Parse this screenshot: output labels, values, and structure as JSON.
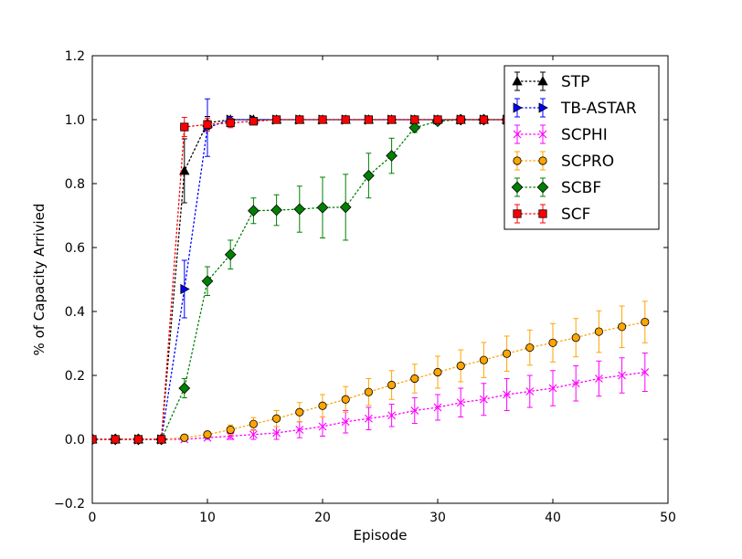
{
  "chart_data": {
    "type": "line",
    "title": "",
    "xlabel": "Episode",
    "ylabel": "% of Capacity Arrivied",
    "xlim": [
      0,
      50
    ],
    "ylim": [
      -0.2,
      1.2
    ],
    "xticks": [
      0,
      10,
      20,
      30,
      40,
      50
    ],
    "yticks": [
      -0.2,
      0.0,
      0.2,
      0.4,
      0.6,
      0.8,
      1.0,
      1.2
    ],
    "xtick_labels": [
      "0",
      "10",
      "20",
      "30",
      "40",
      "50"
    ],
    "ytick_labels": [
      "−0.2",
      "0.0",
      "0.2",
      "0.4",
      "0.6",
      "0.8",
      "1.0",
      "1.2"
    ],
    "grid": false,
    "legend_position": "top-right",
    "x": [
      0,
      2,
      4,
      6,
      8,
      10,
      12,
      14,
      16,
      18,
      20,
      22,
      24,
      26,
      28,
      30,
      32,
      34,
      36,
      38,
      40,
      42,
      44,
      46,
      48
    ],
    "series": [
      {
        "name": "STP",
        "color": "#000000",
        "marker": "triangle-up",
        "values": [
          0,
          0,
          0,
          0,
          0.84,
          0.99,
          1.0,
          1.0,
          1.0,
          1.0,
          1.0,
          1.0,
          1.0,
          1.0,
          1.0,
          1.0,
          1.0,
          1.0,
          1.0,
          1.0,
          1.0,
          1.0,
          1.0,
          1.0,
          1.0
        ],
        "errors": [
          0,
          0,
          0,
          0,
          0.1,
          0.02,
          0,
          0,
          0,
          0,
          0,
          0,
          0,
          0,
          0,
          0,
          0,
          0,
          0,
          0,
          0,
          0,
          0,
          0,
          0
        ]
      },
      {
        "name": "TB-ASTAR",
        "color": "#0000ff",
        "marker": "triangle-right",
        "values": [
          0,
          0,
          0,
          0,
          0.47,
          0.975,
          1.0,
          1.0,
          1.0,
          1.0,
          1.0,
          1.0,
          1.0,
          1.0,
          1.0,
          1.0,
          1.0,
          1.0,
          1.0,
          1.0,
          1.0,
          1.0,
          1.0,
          1.0,
          1.0
        ],
        "errors": [
          0,
          0,
          0,
          0,
          0.09,
          0.09,
          0.01,
          0,
          0,
          0,
          0,
          0,
          0,
          0,
          0,
          0,
          0,
          0,
          0,
          0,
          0,
          0,
          0,
          0,
          0
        ]
      },
      {
        "name": "SCPHI",
        "color": "#ff00ff",
        "marker": "x",
        "values": [
          0,
          0,
          0,
          0,
          0,
          0.005,
          0.01,
          0.015,
          0.02,
          0.03,
          0.04,
          0.055,
          0.065,
          0.075,
          0.09,
          0.1,
          0.115,
          0.125,
          0.14,
          0.15,
          0.16,
          0.175,
          0.19,
          0.2,
          0.21
        ],
        "errors": [
          0,
          0,
          0,
          0,
          0,
          0.005,
          0.01,
          0.015,
          0.02,
          0.025,
          0.03,
          0.035,
          0.035,
          0.035,
          0.04,
          0.04,
          0.045,
          0.05,
          0.05,
          0.05,
          0.055,
          0.055,
          0.055,
          0.055,
          0.06
        ]
      },
      {
        "name": "SCPRO",
        "color": "#ffa500",
        "marker": "circle",
        "values": [
          0,
          0,
          0,
          0,
          0.005,
          0.015,
          0.03,
          0.048,
          0.065,
          0.085,
          0.105,
          0.125,
          0.148,
          0.17,
          0.19,
          0.21,
          0.23,
          0.248,
          0.268,
          0.287,
          0.302,
          0.318,
          0.337,
          0.352,
          0.367
        ],
        "errors": [
          0,
          0,
          0,
          0,
          0.005,
          0.01,
          0.015,
          0.02,
          0.025,
          0.03,
          0.035,
          0.04,
          0.042,
          0.045,
          0.045,
          0.05,
          0.05,
          0.055,
          0.055,
          0.055,
          0.06,
          0.06,
          0.065,
          0.065,
          0.065
        ]
      },
      {
        "name": "SCBF",
        "color": "#008000",
        "marker": "diamond",
        "values": [
          0,
          0,
          0,
          0,
          0.16,
          0.495,
          0.578,
          0.715,
          0.717,
          0.72,
          0.725,
          0.726,
          0.825,
          0.887,
          0.975,
          0.995,
          1.0,
          1.0,
          1.0,
          1.0,
          1.0,
          1.0,
          1.0,
          1.0,
          1.0
        ],
        "errors": [
          0,
          0,
          0,
          0,
          0.03,
          0.045,
          0.045,
          0.04,
          0.048,
          0.072,
          0.095,
          0.103,
          0.07,
          0.055,
          0.015,
          0.01,
          0,
          0,
          0,
          0,
          0,
          0,
          0,
          0,
          0
        ]
      },
      {
        "name": "SCF",
        "color": "#ff0000",
        "marker": "square",
        "values": [
          0,
          0,
          0,
          0,
          0.977,
          0.985,
          0.99,
          0.995,
          1.0,
          1.0,
          1.0,
          1.0,
          1.0,
          1.0,
          1.0,
          1.0,
          1.0,
          1.0,
          1.0,
          1.0,
          1.0,
          1.0,
          1.0,
          1.0,
          1.0
        ],
        "errors": [
          0,
          0,
          0,
          0,
          0.03,
          0.02,
          0.015,
          0.01,
          0.005,
          0,
          0,
          0,
          0,
          0,
          0,
          0,
          0,
          0,
          0,
          0,
          0,
          0,
          0,
          0,
          0
        ]
      }
    ]
  }
}
